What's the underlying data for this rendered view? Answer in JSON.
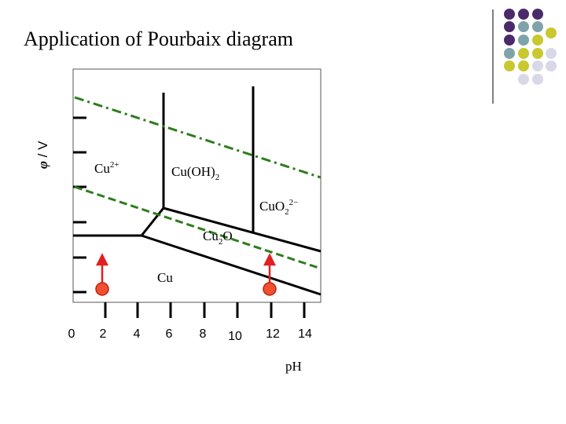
{
  "header": {
    "title": "Application of Pourbaix diagram"
  },
  "diagram": {
    "y_axis_label": {
      "symbol": "φ",
      "unit": " / V"
    },
    "x_axis_label": "pH",
    "x_tick_labels": [
      "0",
      "2",
      "4",
      "6",
      "8",
      "10",
      "12",
      "14"
    ],
    "regions": {
      "cu2plus": {
        "base": "Cu",
        "sup": "2+"
      },
      "cuoh2": {
        "base": "Cu(OH)",
        "sub": "2"
      },
      "cuo2": {
        "base": "CuO",
        "sub": "2",
        "sup": "2−"
      },
      "cu2o": {
        "base": "Cu",
        "sub": "2",
        "tail": "O"
      },
      "cu": {
        "base": "Cu"
      }
    }
  }
}
